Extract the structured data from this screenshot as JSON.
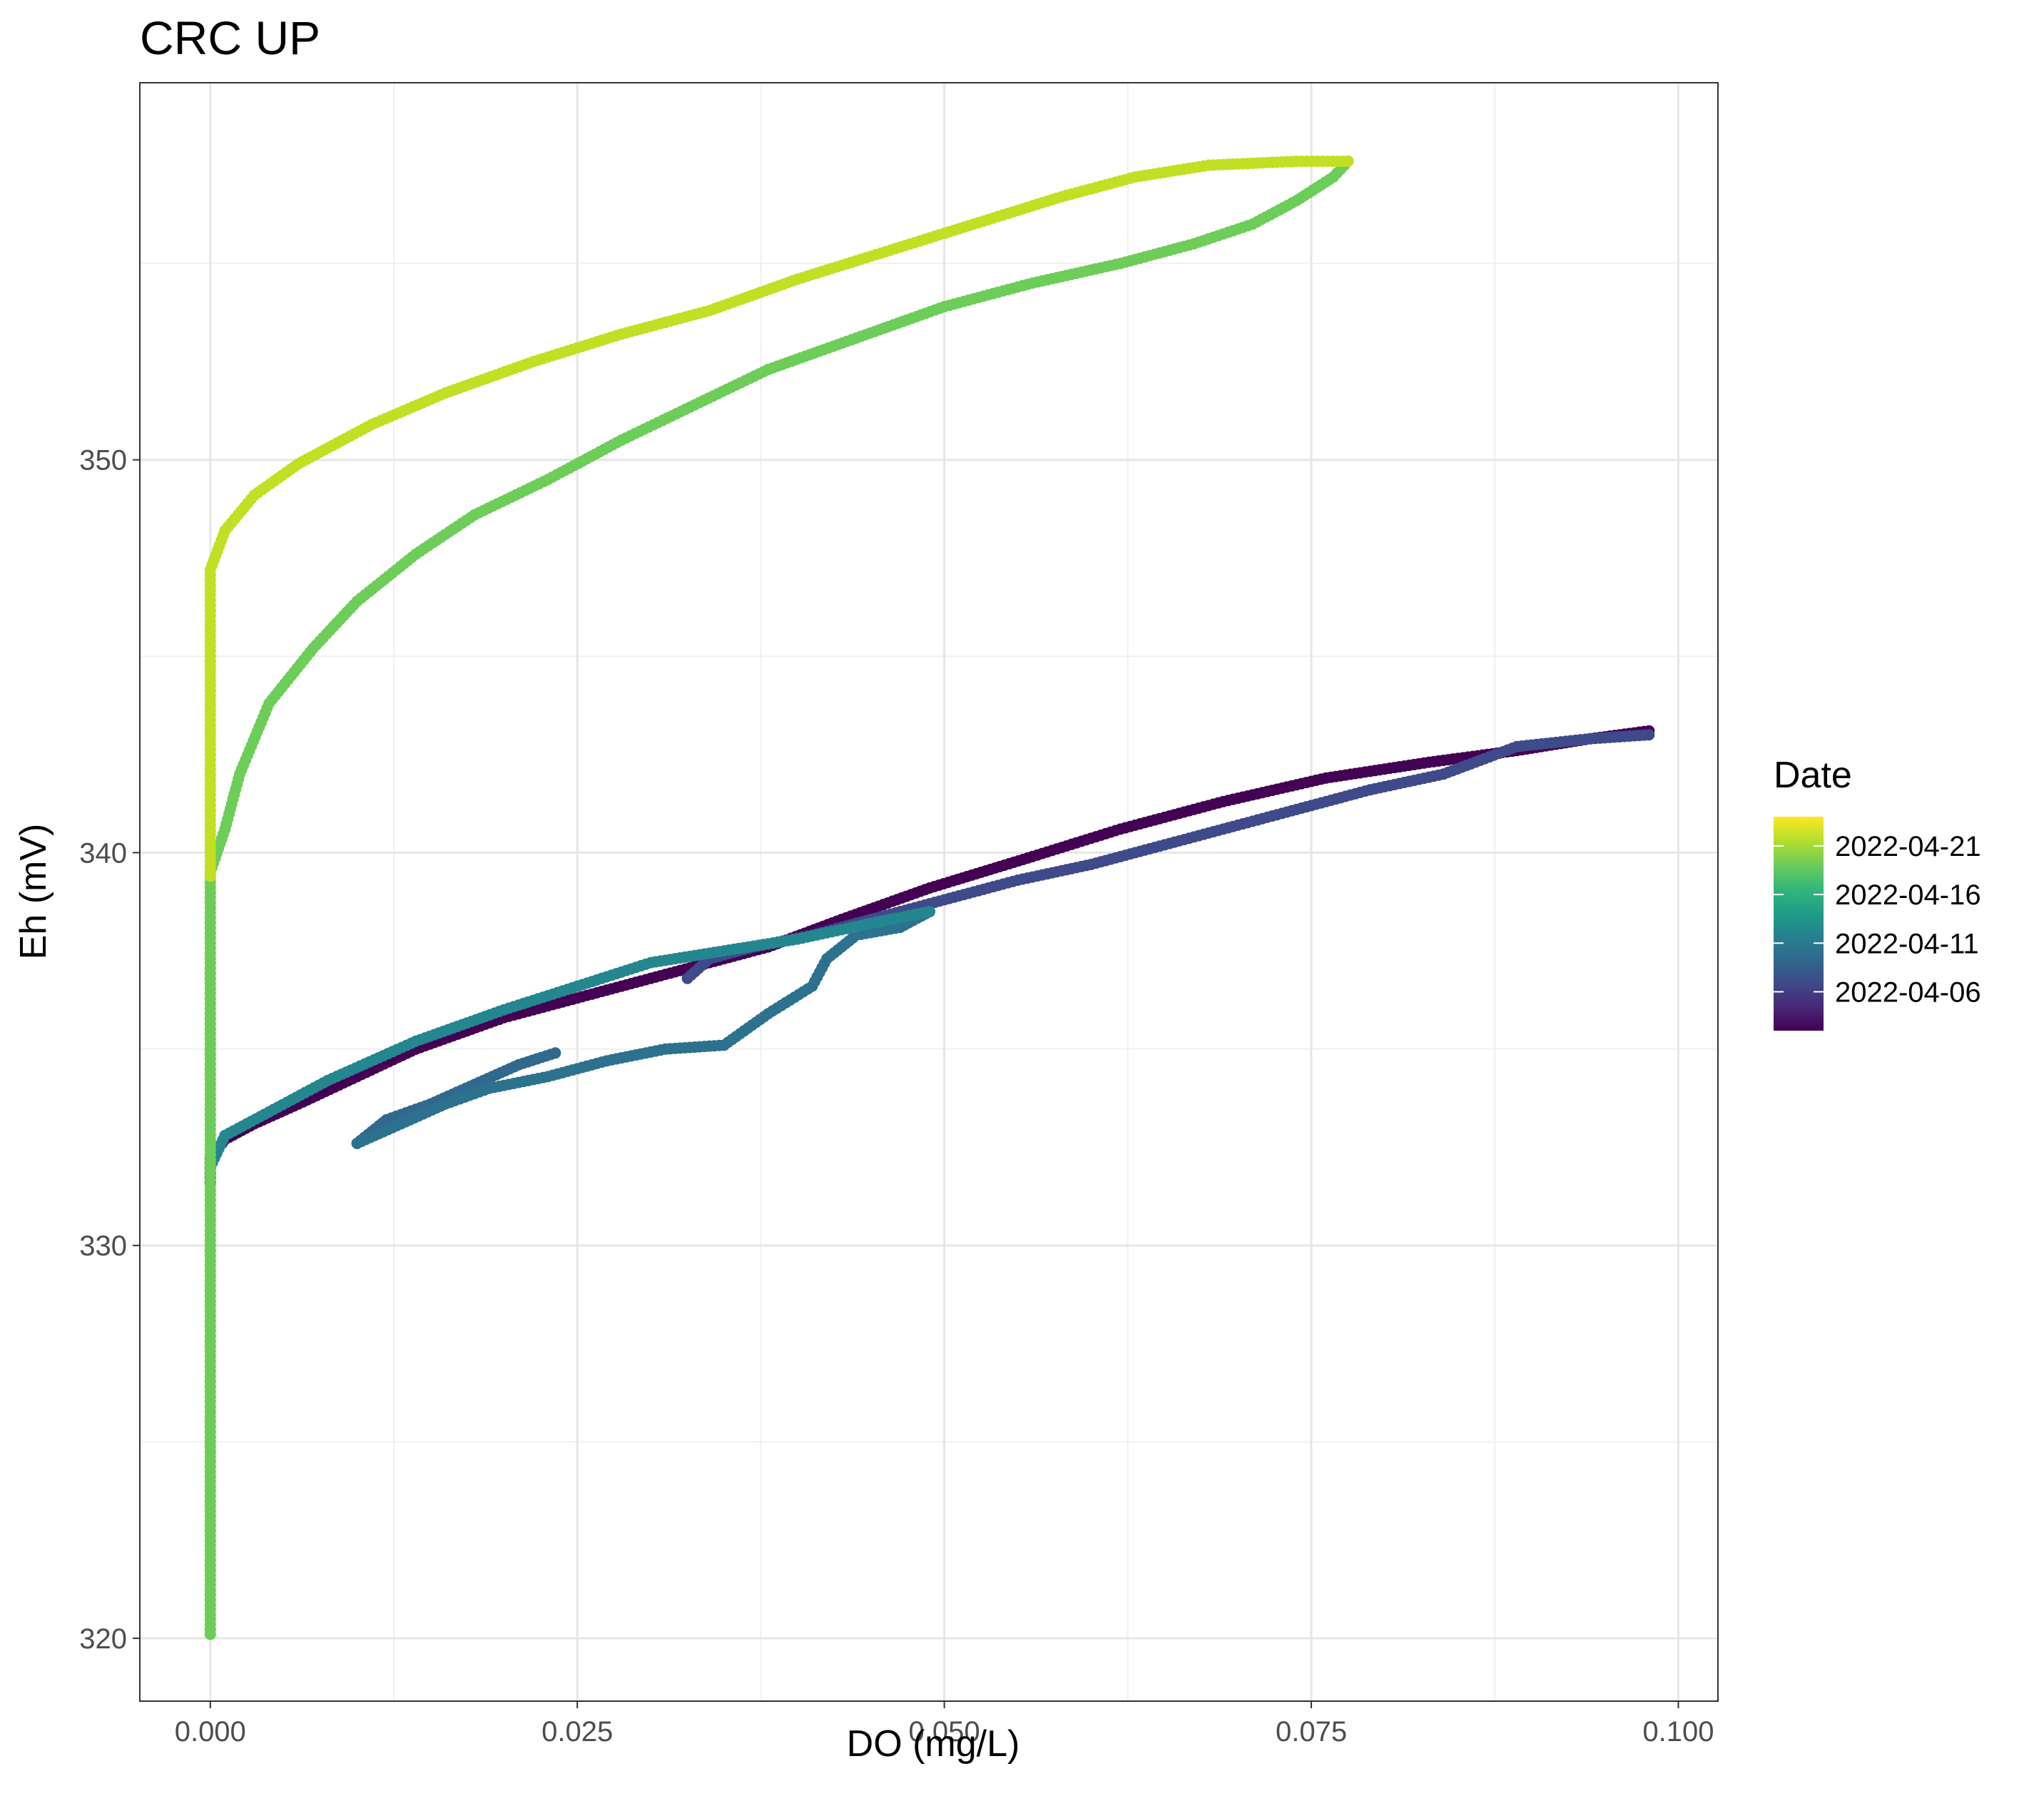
{
  "chart_data": {
    "type": "scatter",
    "title": "CRC UP",
    "xlabel": "DO (mg/L)",
    "ylabel": "Eh (mV)",
    "xlim": [
      -0.0048,
      0.1027
    ],
    "ylim": [
      318.4,
      359.6
    ],
    "x_ticks": [
      0.0,
      0.025,
      0.05,
      0.075,
      0.1
    ],
    "x_tick_labels": [
      "0.000",
      "0.025",
      "0.050",
      "0.075",
      "0.100"
    ],
    "y_ticks": [
      320,
      330,
      340,
      350
    ],
    "y_tick_labels": [
      "320",
      "330",
      "340",
      "350"
    ],
    "grid": true,
    "legend": {
      "title": "Date",
      "position": "right",
      "type": "colorbar",
      "range": [
        "2022-04-02",
        "2022-04-24"
      ],
      "labels": [
        "2022-04-21",
        "2022-04-16",
        "2022-04-11",
        "2022-04-06"
      ],
      "colormap": "viridis"
    },
    "colormap": [
      "#440154",
      "#482878",
      "#3E4A89",
      "#31688E",
      "#26828E",
      "#1F9E89",
      "#35B779",
      "#6DCD59",
      "#B4DE2C",
      "#FDE725"
    ],
    "series": [
      {
        "color": "#440154",
        "shape": "points",
        "path": [
          [
            0.0,
            331.6
          ],
          [
            0.0,
            332.2
          ],
          [
            0.001,
            332.7
          ],
          [
            0.003,
            333.1
          ],
          [
            0.006,
            333.6
          ],
          [
            0.01,
            334.3
          ],
          [
            0.014,
            335.0
          ],
          [
            0.02,
            335.8
          ],
          [
            0.026,
            336.4
          ],
          [
            0.032,
            337.0
          ],
          [
            0.038,
            337.6
          ],
          [
            0.043,
            338.3
          ],
          [
            0.049,
            339.1
          ],
          [
            0.056,
            339.9
          ],
          [
            0.062,
            340.6
          ],
          [
            0.069,
            341.3
          ],
          [
            0.076,
            341.9
          ],
          [
            0.083,
            342.3
          ],
          [
            0.089,
            342.6
          ],
          [
            0.094,
            342.9
          ],
          [
            0.098,
            343.1
          ]
        ],
        "dates": [
          "2022-04-02",
          "2022-04-08"
        ]
      },
      {
        "color": "#3E4A89",
        "shape": "points",
        "path": [
          [
            0.098,
            343.0
          ],
          [
            0.094,
            342.9
          ],
          [
            0.089,
            342.7
          ],
          [
            0.084,
            342.0
          ],
          [
            0.079,
            341.6
          ],
          [
            0.073,
            341.0
          ],
          [
            0.068,
            340.5
          ],
          [
            0.064,
            340.1
          ],
          [
            0.06,
            339.7
          ],
          [
            0.055,
            339.3
          ],
          [
            0.05,
            338.8
          ],
          [
            0.045,
            338.3
          ],
          [
            0.041,
            337.9
          ],
          [
            0.037,
            337.6
          ],
          [
            0.034,
            337.3
          ],
          [
            0.0325,
            336.8
          ]
        ],
        "dates": [
          "2022-04-08",
          "2022-04-10"
        ]
      },
      {
        "color": "#31688E",
        "shape": "points",
        "path": [
          [
            0.0235,
            334.9
          ],
          [
            0.021,
            334.6
          ],
          [
            0.018,
            334.1
          ],
          [
            0.015,
            333.6
          ],
          [
            0.012,
            333.2
          ],
          [
            0.01,
            332.6
          ]
        ],
        "dates": [
          "2022-04-10",
          "2022-04-11"
        ]
      },
      {
        "color": "#2C728E",
        "shape": "points",
        "path": [
          [
            0.01,
            332.6
          ],
          [
            0.013,
            333.1
          ],
          [
            0.016,
            333.6
          ],
          [
            0.019,
            334.0
          ],
          [
            0.023,
            334.3
          ],
          [
            0.027,
            334.7
          ],
          [
            0.031,
            335.0
          ],
          [
            0.035,
            335.1
          ],
          [
            0.038,
            335.9
          ],
          [
            0.041,
            336.6
          ],
          [
            0.042,
            337.3
          ],
          [
            0.044,
            337.9
          ],
          [
            0.047,
            338.1
          ],
          [
            0.049,
            338.5
          ]
        ],
        "dates": [
          "2022-04-11",
          "2022-04-13"
        ]
      },
      {
        "color": "#24868E",
        "shape": "points",
        "path": [
          [
            0.049,
            338.5
          ],
          [
            0.045,
            338.2
          ],
          [
            0.04,
            337.8
          ],
          [
            0.035,
            337.5
          ],
          [
            0.03,
            337.2
          ],
          [
            0.025,
            336.6
          ],
          [
            0.02,
            336.0
          ],
          [
            0.014,
            335.2
          ],
          [
            0.008,
            334.2
          ],
          [
            0.004,
            333.4
          ],
          [
            0.001,
            332.8
          ],
          [
            0.0,
            332.0
          ]
        ],
        "dates": [
          "2022-04-13",
          "2022-04-15"
        ]
      },
      {
        "color": "#6DCD59",
        "shape": "points",
        "path": [
          [
            0.0,
            320.1
          ],
          [
            0.0,
            325.0
          ],
          [
            0.0,
            330.0
          ],
          [
            0.0,
            335.0
          ],
          [
            0.0,
            339.5
          ],
          [
            0.001,
            340.6
          ],
          [
            0.002,
            342.0
          ],
          [
            0.004,
            343.8
          ],
          [
            0.007,
            345.2
          ],
          [
            0.01,
            346.4
          ],
          [
            0.014,
            347.6
          ],
          [
            0.018,
            348.6
          ],
          [
            0.023,
            349.5
          ],
          [
            0.028,
            350.5
          ],
          [
            0.033,
            351.4
          ],
          [
            0.038,
            352.3
          ],
          [
            0.044,
            353.1
          ],
          [
            0.05,
            353.9
          ],
          [
            0.056,
            354.5
          ],
          [
            0.062,
            355.0
          ],
          [
            0.067,
            355.5
          ],
          [
            0.071,
            356.0
          ],
          [
            0.074,
            356.6
          ],
          [
            0.0765,
            357.2
          ],
          [
            0.0775,
            357.6
          ]
        ],
        "dates": [
          "2022-04-17",
          "2022-04-20"
        ]
      },
      {
        "color": "#C2DF23",
        "shape": "points",
        "path": [
          [
            0.0775,
            357.6
          ],
          [
            0.074,
            357.6
          ],
          [
            0.068,
            357.5
          ],
          [
            0.063,
            357.2
          ],
          [
            0.058,
            356.7
          ],
          [
            0.052,
            356.0
          ],
          [
            0.046,
            355.3
          ],
          [
            0.04,
            354.6
          ],
          [
            0.034,
            353.8
          ],
          [
            0.028,
            353.2
          ],
          [
            0.022,
            352.5
          ],
          [
            0.016,
            351.7
          ],
          [
            0.011,
            350.9
          ],
          [
            0.006,
            349.9
          ],
          [
            0.003,
            349.1
          ],
          [
            0.001,
            348.2
          ],
          [
            0.0,
            347.2
          ],
          [
            0.0,
            345.0
          ],
          [
            0.0,
            342.5
          ],
          [
            0.0,
            339.4
          ]
        ],
        "dates": [
          "2022-04-20",
          "2022-04-24"
        ]
      }
    ]
  }
}
